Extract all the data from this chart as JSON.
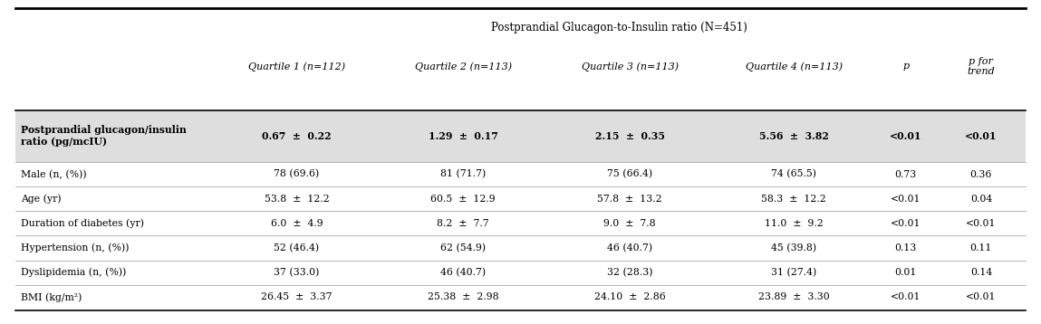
{
  "title": "Postprandial Glucagon-to-Insulin ratio (N=451)",
  "col_headers": [
    "Quartile 1 (n=112)",
    "Quartile 2 (n=113)",
    "Quartile 3 (n=113)",
    "Quartile 4 (n=113)",
    "p",
    "p for\ntrend"
  ],
  "row_labels": [
    "Postprandial glucagon/insulin\nratio (pg/mcIU)",
    "Male (n, (%))",
    "Age (yr)",
    "Duration of diabetes (yr)",
    "Hypertension (n, (%))",
    "Dyslipidemia (n, (%))",
    "BMI (kg/m²)"
  ],
  "row_labels_bold": [
    true,
    false,
    false,
    false,
    false,
    false,
    false
  ],
  "data": [
    [
      "0.67  ±  0.22",
      "1.29  ±  0.17",
      "2.15  ±  0.35",
      "5.56  ±  3.82",
      "<0.01",
      "<0.01"
    ],
    [
      "78 (69.6)",
      "81 (71.7)",
      "75 (66.4)",
      "74 (65.5)",
      "0.73",
      "0.36"
    ],
    [
      "53.8  ±  12.2",
      "60.5  ±  12.9",
      "57.8  ±  13.2",
      "58.3  ±  12.2",
      "<0.01",
      "0.04"
    ],
    [
      "6.0  ±  4.9",
      "8.2  ±  7.7",
      "9.0  ±  7.8",
      "11.0  ±  9.2",
      "<0.01",
      "<0.01"
    ],
    [
      "52 (46.4)",
      "62 (54.9)",
      "46 (40.7)",
      "45 (39.8)",
      "0.13",
      "0.11"
    ],
    [
      "37 (33.0)",
      "46 (40.7)",
      "32 (28.3)",
      "31 (27.4)",
      "0.01",
      "0.14"
    ],
    [
      "26.45  ±  3.37",
      "25.38  ±  2.98",
      "24.10  ±  2.86",
      "23.89  ±  3.30",
      "<0.01",
      "<0.01"
    ]
  ],
  "shaded_rows": [
    0
  ],
  "shade_color": "#dedede",
  "bg_color": "#ffffff",
  "text_color": "#000000",
  "title_fontsize": 8.5,
  "header_fontsize": 8.0,
  "data_fontsize": 7.8,
  "label_fontsize": 7.8
}
